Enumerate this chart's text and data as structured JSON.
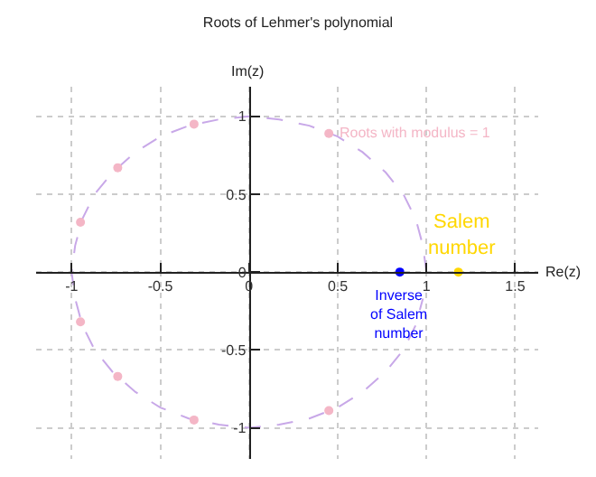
{
  "chart_data": {
    "type": "scatter",
    "title": "Roots of Lehmer's polynomial",
    "xlabel": "Re(z)",
    "ylabel": "Im(z)",
    "xlim": [
      -1.2,
      1.63
    ],
    "ylim": [
      -1.2,
      1.19
    ],
    "xticks": [
      -1,
      -0.5,
      0,
      0.5,
      1,
      1.5
    ],
    "yticks": [
      -1,
      -0.5,
      0,
      0.5,
      1
    ],
    "grid": true,
    "legend": false,
    "marker": "circle",
    "series": [
      {
        "type": "line",
        "color": "#c8a8e8",
        "line_style": "dashed",
        "marker": "none",
        "x": [
          1,
          0.98,
          0.94,
          0.87,
          0.77,
          0.64,
          0.5,
          0.34,
          0.17,
          0,
          -0.17,
          -0.34,
          -0.5,
          -0.64,
          -0.77,
          -0.87,
          -0.94,
          -0.98,
          -1,
          -0.98,
          -0.94,
          -0.87,
          -0.77,
          -0.64,
          -0.5,
          -0.34,
          -0.17,
          0,
          0.17,
          0.34,
          0.5,
          0.64,
          0.77,
          0.87,
          0.94,
          0.98
        ],
        "values": [
          0,
          0.17,
          0.34,
          0.5,
          0.64,
          0.77,
          0.87,
          0.94,
          0.98,
          1,
          0.98,
          0.94,
          0.87,
          0.77,
          0.64,
          0.5,
          0.34,
          0.17,
          0,
          -0.17,
          -0.34,
          -0.5,
          -0.64,
          -0.77,
          -0.87,
          -0.94,
          -0.98,
          -1,
          -0.98,
          -0.94,
          -0.87,
          -0.77,
          -0.64,
          -0.5,
          -0.34,
          -0.17
        ]
      },
      {
        "name": "Roots with modulus = 1",
        "color": "#f4b6c6",
        "x": [
          0.45,
          -0.31,
          -0.74,
          -0.95,
          -0.95,
          -0.74,
          -0.31,
          0.45
        ],
        "values": [
          0.89,
          0.95,
          0.67,
          0.32,
          -0.32,
          -0.67,
          -0.95,
          -0.89
        ]
      },
      {
        "name": "Salem number",
        "color": "#ffd700",
        "x": [
          1.18
        ],
        "values": [
          0
        ]
      },
      {
        "name": "Inverse of Salem number",
        "color": "#0000ff",
        "x": [
          0.85
        ],
        "values": [
          0
        ]
      }
    ]
  }
}
